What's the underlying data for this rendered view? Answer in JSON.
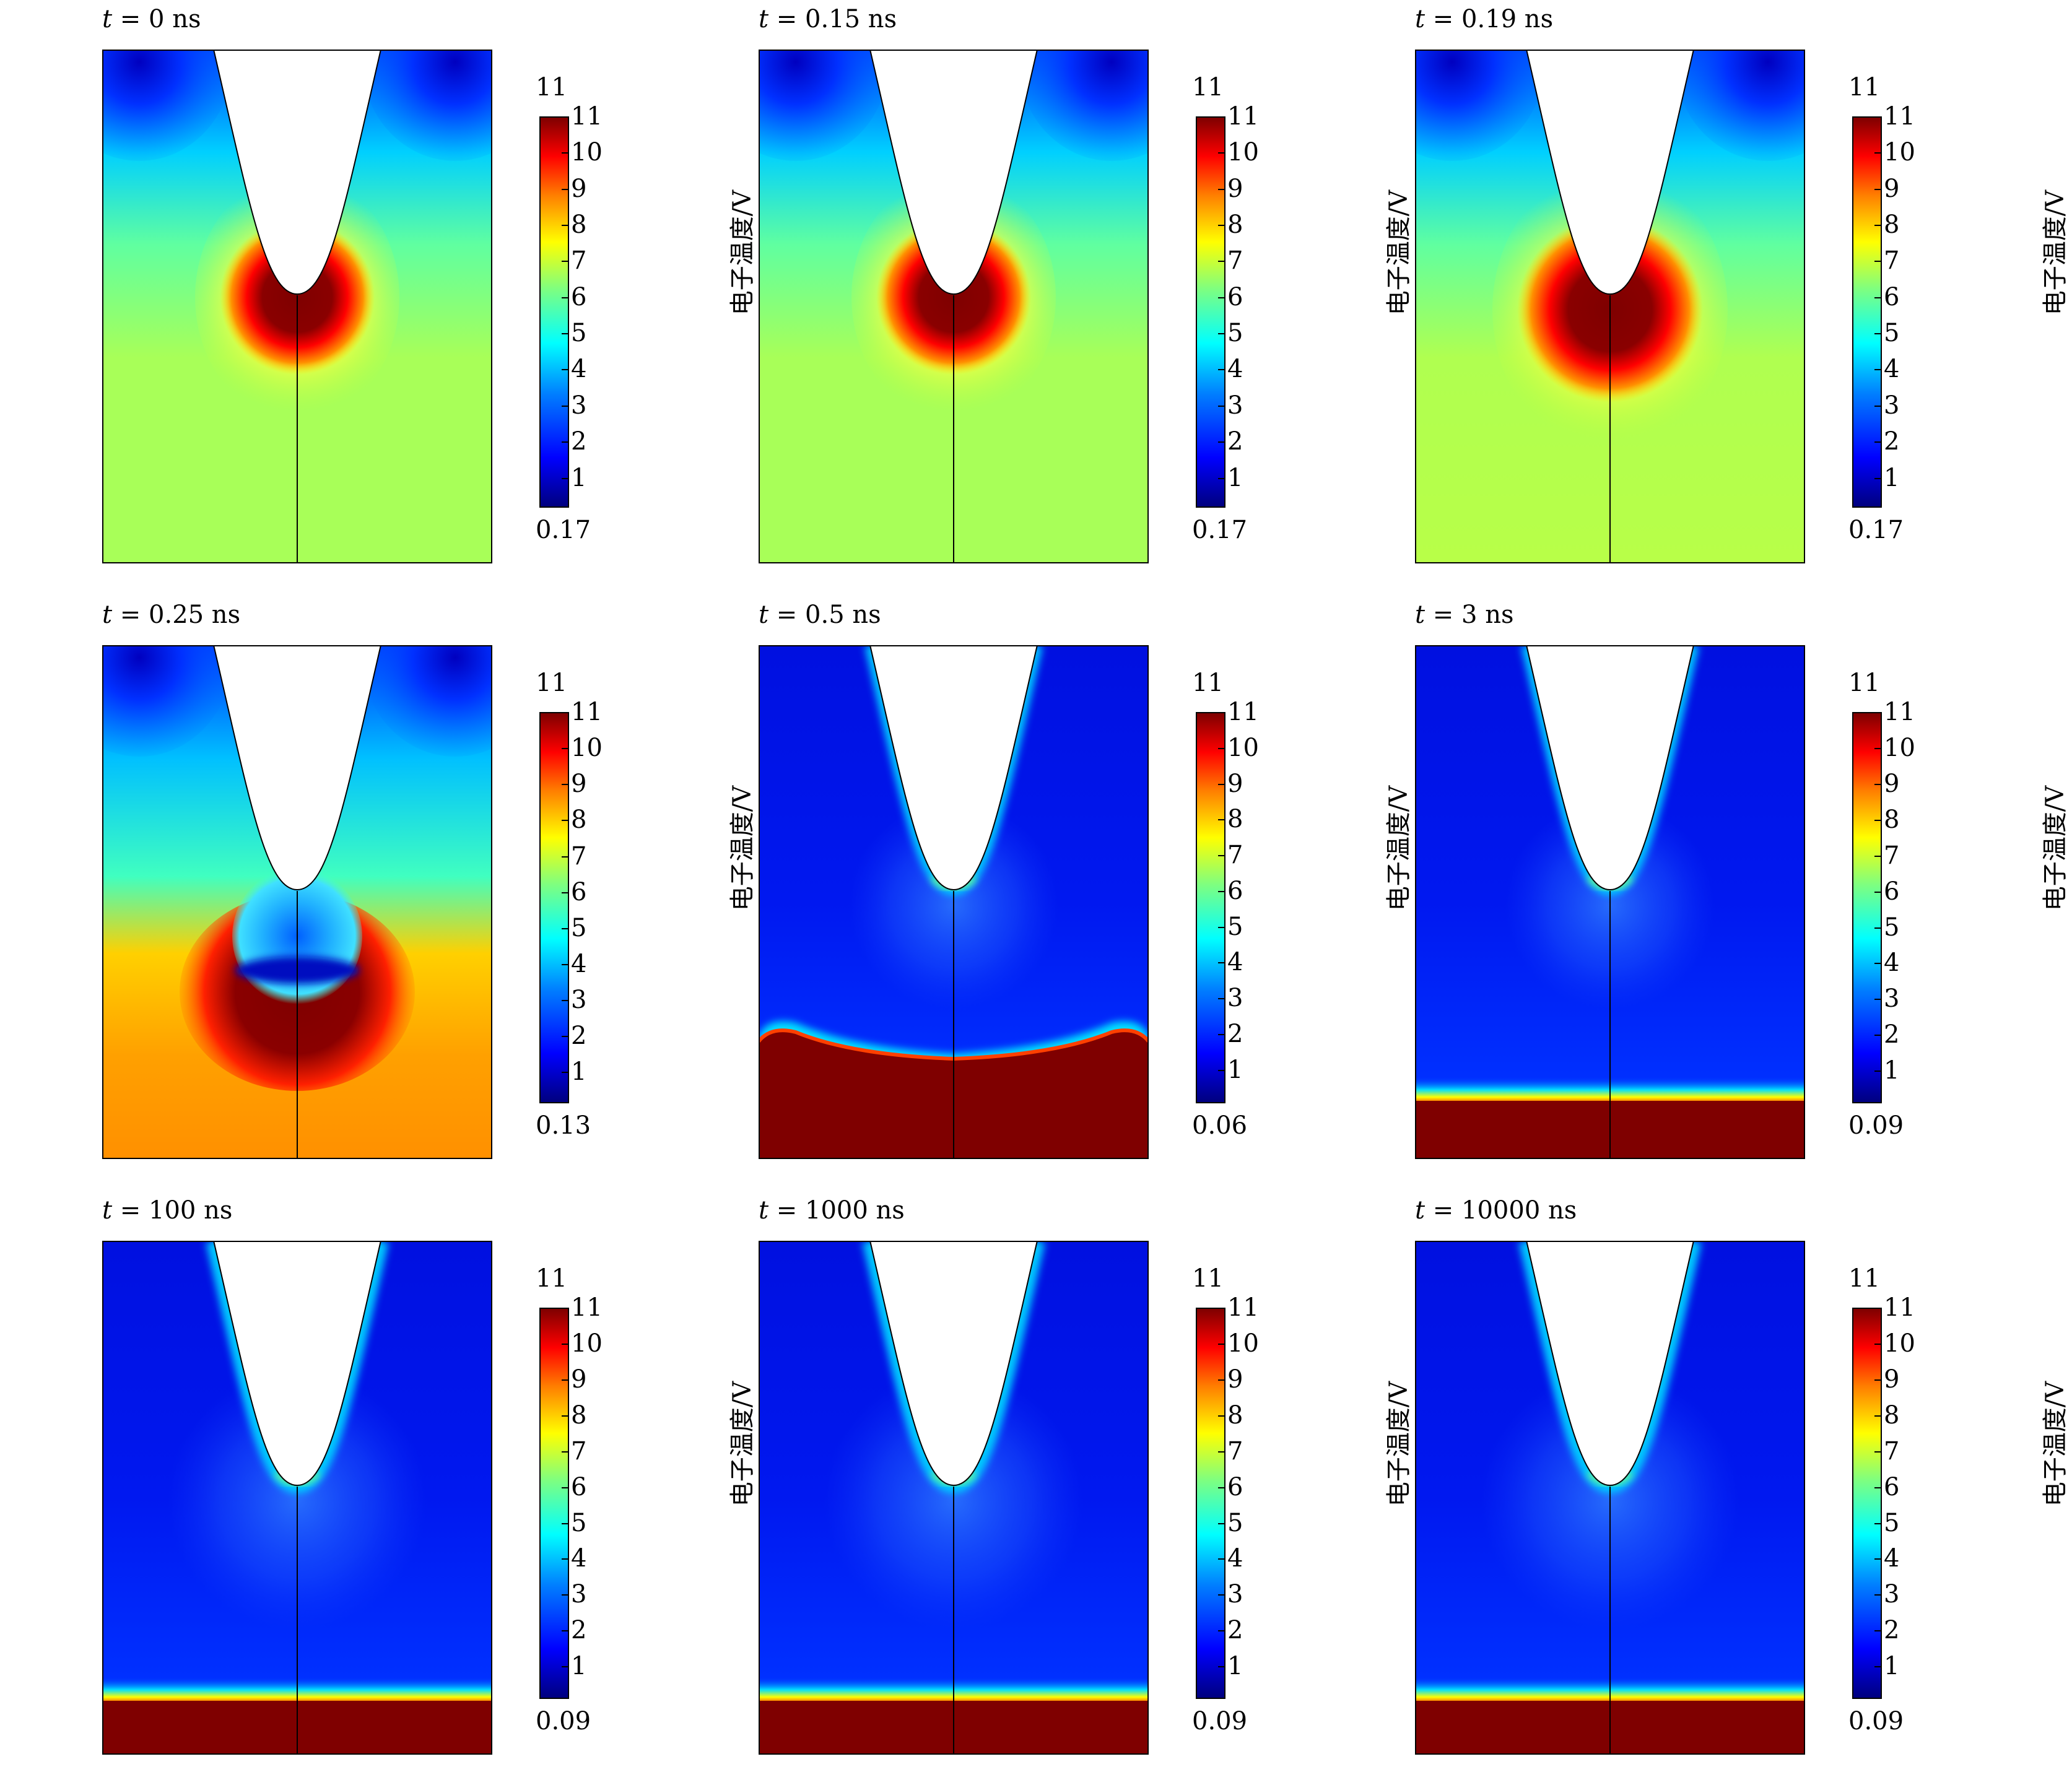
{
  "colors": {
    "jet_stops": [
      "#00007f",
      "#0000ff",
      "#007fff",
      "#00ffff",
      "#7fff7f",
      "#ffff00",
      "#ff7f00",
      "#ff0000",
      "#7f0000"
    ],
    "frame": "#000000",
    "background": "#ffffff"
  },
  "chart_data": [
    {
      "type": "heatmap",
      "title_var": "t",
      "title_value": "= 0 ns",
      "colorbar_label": "电子温度/V",
      "colorbar_max": "11",
      "colorbar_min": "0.17",
      "colorbar_ticks": [
        "11",
        "10",
        "9",
        "8",
        "7",
        "6",
        "5",
        "4",
        "3",
        "2",
        "1"
      ],
      "stage": 0,
      "description_value_range": [
        0.17,
        11
      ]
    },
    {
      "type": "heatmap",
      "title_var": "t",
      "title_value": "= 0.15 ns",
      "colorbar_label": "电子温度/V",
      "colorbar_max": "11",
      "colorbar_min": "0.17",
      "colorbar_ticks": [
        "11",
        "10",
        "9",
        "8",
        "7",
        "6",
        "5",
        "4",
        "3",
        "2",
        "1"
      ],
      "stage": 1,
      "description_value_range": [
        0.17,
        11
      ]
    },
    {
      "type": "heatmap",
      "title_var": "t",
      "title_value": "= 0.19 ns",
      "colorbar_label": "电子温度/V",
      "colorbar_max": "11",
      "colorbar_min": "0.17",
      "colorbar_ticks": [
        "11",
        "10",
        "9",
        "8",
        "7",
        "6",
        "5",
        "4",
        "3",
        "2",
        "1"
      ],
      "stage": 2,
      "description_value_range": [
        0.17,
        11
      ]
    },
    {
      "type": "heatmap",
      "title_var": "t",
      "title_value": "= 0.25 ns",
      "colorbar_label": "电子温度/V",
      "colorbar_max": "11",
      "colorbar_min": "0.13",
      "colorbar_ticks": [
        "11",
        "10",
        "9",
        "8",
        "7",
        "6",
        "5",
        "4",
        "3",
        "2",
        "1"
      ],
      "stage": 3,
      "description_value_range": [
        0.13,
        11
      ]
    },
    {
      "type": "heatmap",
      "title_var": "t",
      "title_value": "= 0.5 ns",
      "colorbar_label": "电子温度/V",
      "colorbar_max": "11",
      "colorbar_min": "0.06",
      "colorbar_ticks": [
        "11",
        "10",
        "9",
        "8",
        "7",
        "6",
        "5",
        "4",
        "3",
        "2",
        "1"
      ],
      "stage": 4,
      "description_value_range": [
        0.06,
        11
      ]
    },
    {
      "type": "heatmap",
      "title_var": "t",
      "title_value": "= 3 ns",
      "colorbar_label": "电子温度/V",
      "colorbar_max": "11",
      "colorbar_min": "0.09",
      "colorbar_ticks": [
        "11",
        "10",
        "9",
        "8",
        "7",
        "6",
        "5",
        "4",
        "3",
        "2",
        "1"
      ],
      "stage": 5,
      "description_value_range": [
        0.09,
        11
      ]
    },
    {
      "type": "heatmap",
      "title_var": "t",
      "title_value": "= 100 ns",
      "colorbar_label": "电子温度/V",
      "colorbar_max": "11",
      "colorbar_min": "0.09",
      "colorbar_ticks": [
        "11",
        "10",
        "9",
        "8",
        "7",
        "6",
        "5",
        "4",
        "3",
        "2",
        "1"
      ],
      "stage": 6,
      "description_value_range": [
        0.09,
        11
      ]
    },
    {
      "type": "heatmap",
      "title_var": "t",
      "title_value": "= 1000 ns",
      "colorbar_label": "电子温度/V",
      "colorbar_max": "11",
      "colorbar_min": "0.09",
      "colorbar_ticks": [
        "11",
        "10",
        "9",
        "8",
        "7",
        "6",
        "5",
        "4",
        "3",
        "2",
        "1"
      ],
      "stage": 6,
      "description_value_range": [
        0.09,
        11
      ]
    },
    {
      "type": "heatmap",
      "title_var": "t",
      "title_value": "= 10000 ns",
      "colorbar_label": "电子温度/V",
      "colorbar_max": "11",
      "colorbar_min": "0.09",
      "colorbar_ticks": [
        "11",
        "10",
        "9",
        "8",
        "7",
        "6",
        "5",
        "4",
        "3",
        "2",
        "1"
      ],
      "stage": 6,
      "description_value_range": [
        0.09,
        11
      ]
    }
  ]
}
